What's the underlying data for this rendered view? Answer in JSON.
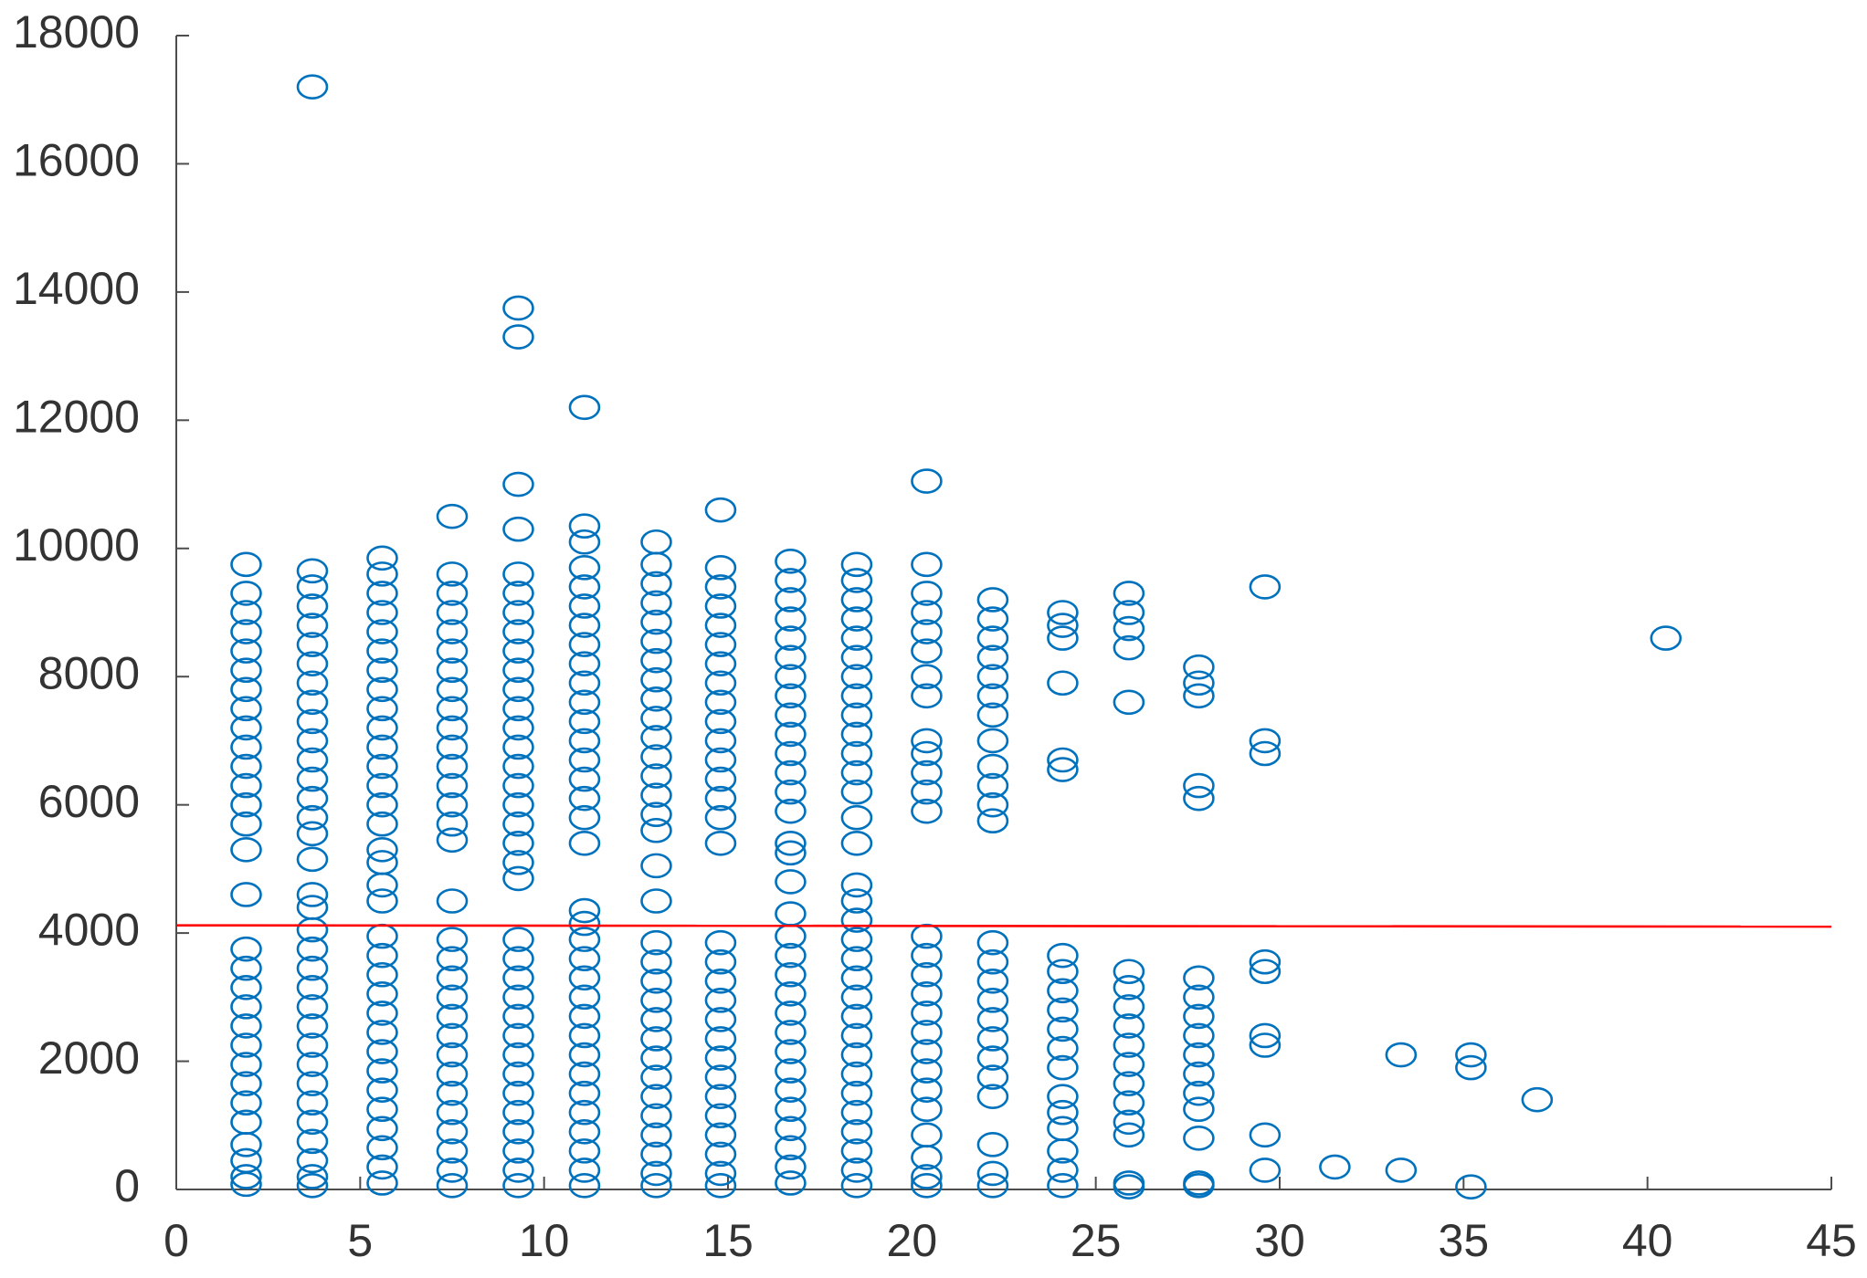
{
  "chart_data": {
    "type": "scatter",
    "marker_color": "#0072bd",
    "xlim": [
      0,
      45
    ],
    "xticks": [
      0,
      5,
      10,
      15,
      20,
      25,
      30,
      35,
      40,
      45
    ],
    "ylim": [
      0,
      18000
    ],
    "yticks": [
      0,
      2000,
      4000,
      6000,
      8000,
      10000,
      12000,
      14000,
      16000,
      18000
    ],
    "points_by_x": [
      {
        "x": 1.9,
        "y": [
          9750,
          9300,
          9000,
          8700,
          8400,
          8100,
          7800,
          7500,
          7200,
          6900,
          6600,
          6300,
          6000,
          5700,
          5300,
          4600,
          3750,
          3450,
          3150,
          2850,
          2550,
          2250,
          1950,
          1650,
          1350,
          1050,
          700,
          450,
          200,
          80
        ]
      },
      {
        "x": 3.7,
        "y": [
          17200,
          9650,
          9400,
          9100,
          8800,
          8500,
          8200,
          7900,
          7600,
          7300,
          7000,
          6700,
          6400,
          6100,
          5800,
          5550,
          5150,
          4600,
          4400,
          4050,
          3750,
          3450,
          3150,
          2850,
          2550,
          2250,
          1950,
          1650,
          1350,
          1050,
          750,
          450,
          200,
          60
        ]
      },
      {
        "x": 5.6,
        "y": [
          9850,
          9600,
          9300,
          9000,
          8700,
          8400,
          8100,
          7800,
          7500,
          7200,
          6900,
          6600,
          6300,
          6000,
          5700,
          5300,
          5100,
          4750,
          4500,
          3950,
          3650,
          3350,
          3050,
          2750,
          2450,
          2150,
          1850,
          1550,
          1250,
          950,
          650,
          350,
          100
        ]
      },
      {
        "x": 7.5,
        "y": [
          10500,
          9600,
          9300,
          9000,
          8700,
          8400,
          8100,
          7800,
          7500,
          7200,
          6900,
          6600,
          6300,
          6000,
          5700,
          5450,
          4500,
          3900,
          3600,
          3300,
          3000,
          2700,
          2400,
          2100,
          1800,
          1500,
          1200,
          900,
          600,
          300,
          60
        ]
      },
      {
        "x": 9.3,
        "y": [
          13750,
          13300,
          11000,
          10300,
          9600,
          9300,
          9000,
          8700,
          8400,
          8100,
          7800,
          7500,
          7200,
          6900,
          6600,
          6300,
          6000,
          5700,
          5400,
          5100,
          4850,
          3900,
          3600,
          3300,
          3000,
          2700,
          2400,
          2100,
          1800,
          1500,
          1200,
          900,
          600,
          300,
          60
        ]
      },
      {
        "x": 11.1,
        "y": [
          12200,
          10350,
          10100,
          9700,
          9400,
          9100,
          8800,
          8500,
          8200,
          7900,
          7600,
          7300,
          7000,
          6700,
          6400,
          6100,
          5800,
          5400,
          4350,
          4150,
          3900,
          3600,
          3300,
          3000,
          2700,
          2400,
          2100,
          1800,
          1500,
          1200,
          900,
          600,
          300,
          60
        ]
      },
      {
        "x": 13.05,
        "y": [
          10100,
          9750,
          9450,
          9150,
          8850,
          8550,
          8250,
          7950,
          7650,
          7350,
          7050,
          6750,
          6450,
          6150,
          5850,
          5600,
          5050,
          4500,
          3850,
          3550,
          3250,
          2950,
          2650,
          2350,
          2050,
          1750,
          1450,
          1150,
          850,
          550,
          250,
          60
        ]
      },
      {
        "x": 14.8,
        "y": [
          10600,
          9700,
          9400,
          9100,
          8800,
          8500,
          8200,
          7900,
          7600,
          7300,
          7000,
          6700,
          6400,
          6100,
          5800,
          5400,
          3850,
          3550,
          3250,
          2950,
          2650,
          2350,
          2050,
          1750,
          1450,
          1150,
          850,
          550,
          250,
          60
        ]
      },
      {
        "x": 16.7,
        "y": [
          9800,
          9500,
          9200,
          8900,
          8600,
          8300,
          8000,
          7700,
          7400,
          7100,
          6800,
          6500,
          6200,
          5900,
          5400,
          5250,
          4800,
          4300,
          3950,
          3650,
          3350,
          3050,
          2750,
          2450,
          2150,
          1850,
          1550,
          1250,
          950,
          650,
          350,
          100
        ]
      },
      {
        "x": 18.5,
        "y": [
          9750,
          9500,
          9200,
          8900,
          8600,
          8300,
          8000,
          7700,
          7400,
          7100,
          6800,
          6500,
          6200,
          5800,
          5400,
          4750,
          4500,
          4200,
          3900,
          3600,
          3300,
          3000,
          2700,
          2400,
          2100,
          1800,
          1500,
          1200,
          900,
          600,
          300,
          60
        ]
      },
      {
        "x": 20.4,
        "y": [
          11050,
          9750,
          9300,
          9000,
          8700,
          8400,
          8000,
          7700,
          7000,
          6800,
          6500,
          6200,
          5900,
          3950,
          3650,
          3350,
          3050,
          2750,
          2450,
          2150,
          1850,
          1550,
          1250,
          850,
          500,
          200,
          60
        ]
      },
      {
        "x": 22.2,
        "y": [
          9200,
          8900,
          8600,
          8300,
          8000,
          7700,
          7400,
          7000,
          6600,
          6300,
          6000,
          5750,
          3850,
          3550,
          3250,
          2950,
          2650,
          2350,
          2050,
          1750,
          1450,
          700,
          250,
          60
        ]
      },
      {
        "x": 24.1,
        "y": [
          9000,
          8800,
          8600,
          7900,
          6700,
          6550,
          3650,
          3400,
          3100,
          2800,
          2500,
          2200,
          1900,
          1450,
          1200,
          950,
          600,
          300,
          60
        ]
      },
      {
        "x": 25.9,
        "y": [
          9300,
          9000,
          8750,
          8450,
          7600,
          3400,
          3150,
          2850,
          2550,
          2250,
          1950,
          1650,
          1350,
          1050,
          850,
          100,
          40
        ]
      },
      {
        "x": 27.8,
        "y": [
          8150,
          7900,
          7700,
          6300,
          6100,
          3300,
          3000,
          2700,
          2400,
          2100,
          1800,
          1500,
          1250,
          800,
          100,
          60
        ]
      },
      {
        "x": 29.6,
        "y": [
          9400,
          7000,
          6800,
          3550,
          3400,
          2400,
          2250,
          850,
          300
        ]
      },
      {
        "x": 31.5,
        "y": [
          350
        ]
      },
      {
        "x": 33.3,
        "y": [
          2100,
          300
        ]
      },
      {
        "x": 35.2,
        "y": [
          2100,
          1900,
          40
        ]
      },
      {
        "x": 37.0,
        "y": [
          1400
        ]
      },
      {
        "x": 40.5,
        "y": [
          8600
        ]
      }
    ],
    "reference_line": {
      "color": "#ff0000",
      "x": [
        0,
        45
      ],
      "y": [
        4120,
        4100
      ]
    }
  }
}
